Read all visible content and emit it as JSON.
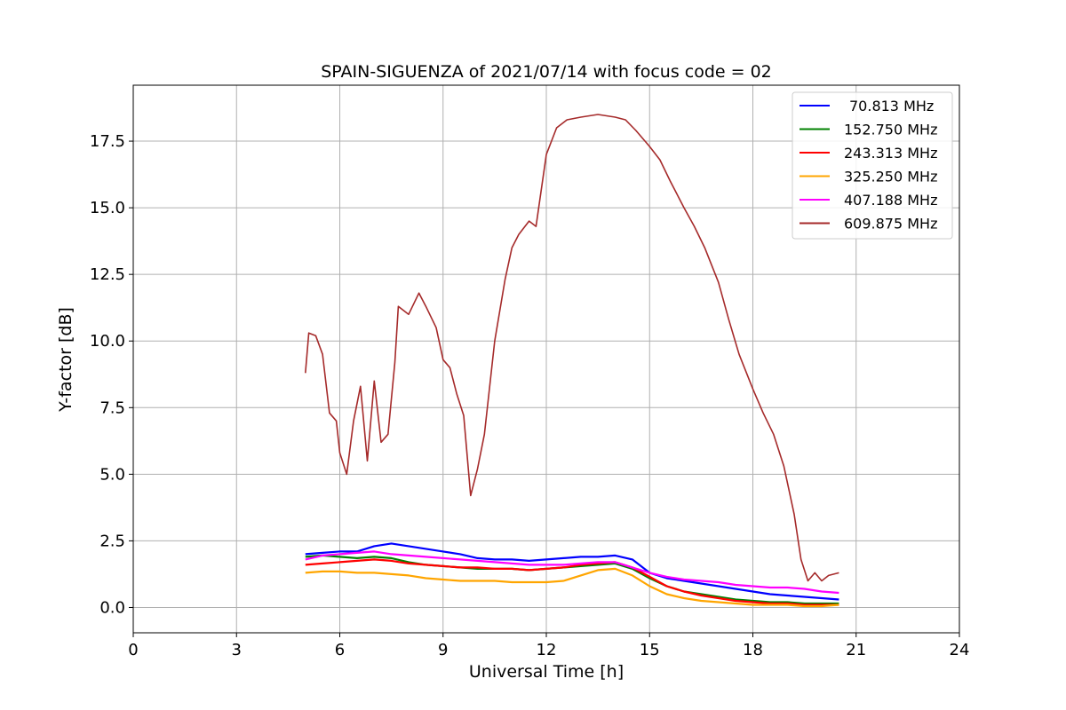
{
  "chart_data": {
    "type": "line",
    "title": "SPAIN-SIGUENZA of 2021/07/14 with focus code = 02",
    "xlabel": "Universal Time [h]",
    "ylabel": "Y-factor [dB]",
    "xlim": [
      0,
      24
    ],
    "ylim": [
      -0.95,
      19.6
    ],
    "xticks": [
      0,
      3,
      6,
      9,
      12,
      15,
      18,
      21,
      24
    ],
    "yticks": [
      0.0,
      2.5,
      5.0,
      7.5,
      10.0,
      12.5,
      15.0,
      17.5
    ],
    "ytick_labels": [
      "0.0",
      "2.5",
      "5.0",
      "7.5",
      "10.0",
      "12.5",
      "15.0",
      "17.5"
    ],
    "grid": true,
    "legend_position": "top-right",
    "series": [
      {
        "name": "70.813 MHz",
        "color": "#0000ff",
        "x": [
          5.0,
          5.5,
          6.0,
          6.5,
          7.0,
          7.5,
          8.0,
          8.5,
          9.0,
          9.5,
          10.0,
          10.5,
          11.0,
          11.5,
          12.0,
          12.5,
          13.0,
          13.5,
          14.0,
          14.5,
          15.0,
          15.5,
          16.0,
          16.5,
          17.0,
          17.5,
          18.0,
          18.5,
          19.0,
          19.5,
          20.0,
          20.5
        ],
        "y": [
          2.0,
          2.05,
          2.1,
          2.1,
          2.3,
          2.4,
          2.3,
          2.2,
          2.1,
          2.0,
          1.85,
          1.8,
          1.8,
          1.75,
          1.8,
          1.85,
          1.9,
          1.9,
          1.95,
          1.8,
          1.3,
          1.1,
          1.0,
          0.9,
          0.8,
          0.7,
          0.6,
          0.5,
          0.45,
          0.4,
          0.35,
          0.3
        ]
      },
      {
        "name": "152.750 MHz",
        "color": "#008000",
        "x": [
          5.0,
          5.5,
          6.0,
          6.5,
          7.0,
          7.5,
          8.0,
          8.5,
          9.0,
          9.5,
          10.0,
          10.5,
          11.0,
          11.5,
          12.0,
          12.5,
          13.0,
          13.5,
          14.0,
          14.5,
          15.0,
          15.5,
          16.0,
          16.5,
          17.0,
          17.5,
          18.0,
          18.5,
          19.0,
          19.5,
          20.0,
          20.5
        ],
        "y": [
          1.9,
          1.95,
          1.9,
          1.85,
          1.9,
          1.85,
          1.7,
          1.6,
          1.55,
          1.5,
          1.45,
          1.45,
          1.45,
          1.4,
          1.45,
          1.5,
          1.55,
          1.6,
          1.65,
          1.45,
          1.1,
          0.8,
          0.6,
          0.5,
          0.4,
          0.3,
          0.25,
          0.2,
          0.2,
          0.15,
          0.15,
          0.15
        ]
      },
      {
        "name": "243.313 MHz",
        "color": "#ff0000",
        "x": [
          5.0,
          5.5,
          6.0,
          6.5,
          7.0,
          7.5,
          8.0,
          8.5,
          9.0,
          9.5,
          10.0,
          10.5,
          11.0,
          11.5,
          12.0,
          12.5,
          13.0,
          13.5,
          14.0,
          14.5,
          15.0,
          15.5,
          16.0,
          16.5,
          17.0,
          17.5,
          18.0,
          18.5,
          19.0,
          19.5,
          20.0,
          20.5
        ],
        "y": [
          1.6,
          1.65,
          1.7,
          1.75,
          1.8,
          1.75,
          1.65,
          1.6,
          1.55,
          1.5,
          1.5,
          1.45,
          1.45,
          1.4,
          1.45,
          1.5,
          1.6,
          1.65,
          1.7,
          1.5,
          1.15,
          0.8,
          0.6,
          0.45,
          0.35,
          0.25,
          0.2,
          0.15,
          0.15,
          0.1,
          0.1,
          0.1
        ]
      },
      {
        "name": "325.250 MHz",
        "color": "#ffa500",
        "x": [
          5.0,
          5.5,
          6.0,
          6.5,
          7.0,
          7.5,
          8.0,
          8.5,
          9.0,
          9.5,
          10.0,
          10.5,
          11.0,
          11.5,
          12.0,
          12.5,
          13.0,
          13.5,
          14.0,
          14.5,
          15.0,
          15.5,
          16.0,
          16.5,
          17.0,
          17.5,
          18.0,
          18.5,
          19.0,
          19.5,
          20.0,
          20.5
        ],
        "y": [
          1.3,
          1.35,
          1.35,
          1.3,
          1.3,
          1.25,
          1.2,
          1.1,
          1.05,
          1.0,
          1.0,
          1.0,
          0.95,
          0.95,
          0.95,
          1.0,
          1.2,
          1.4,
          1.45,
          1.2,
          0.8,
          0.5,
          0.35,
          0.25,
          0.2,
          0.15,
          0.1,
          0.1,
          0.1,
          0.05,
          0.05,
          0.1
        ]
      },
      {
        "name": "407.188 MHz",
        "color": "#ff00ff",
        "x": [
          5.0,
          5.5,
          6.0,
          6.5,
          7.0,
          7.5,
          8.0,
          8.5,
          9.0,
          9.5,
          10.0,
          10.5,
          11.0,
          11.5,
          12.0,
          12.5,
          13.0,
          13.5,
          14.0,
          14.5,
          15.0,
          15.5,
          16.0,
          16.5,
          17.0,
          17.5,
          18.0,
          18.5,
          19.0,
          19.5,
          20.0,
          20.5
        ],
        "y": [
          1.8,
          1.95,
          2.0,
          2.05,
          2.1,
          2.0,
          1.95,
          1.9,
          1.85,
          1.8,
          1.75,
          1.7,
          1.65,
          1.6,
          1.6,
          1.6,
          1.65,
          1.7,
          1.7,
          1.5,
          1.3,
          1.15,
          1.05,
          1.0,
          0.95,
          0.85,
          0.8,
          0.75,
          0.75,
          0.7,
          0.6,
          0.55
        ]
      },
      {
        "name": "609.875 MHz",
        "color": "#a52a2a",
        "x": [
          5.0,
          5.1,
          5.3,
          5.5,
          5.7,
          5.9,
          6.0,
          6.2,
          6.4,
          6.6,
          6.8,
          7.0,
          7.2,
          7.4,
          7.6,
          7.7,
          8.0,
          8.3,
          8.5,
          8.8,
          9.0,
          9.2,
          9.4,
          9.6,
          9.8,
          10.0,
          10.2,
          10.5,
          10.8,
          11.0,
          11.2,
          11.5,
          11.7,
          12.0,
          12.3,
          12.6,
          13.0,
          13.5,
          14.0,
          14.3,
          14.6,
          15.0,
          15.3,
          15.6,
          16.0,
          16.3,
          16.6,
          17.0,
          17.3,
          17.6,
          18.0,
          18.3,
          18.6,
          18.9,
          19.2,
          19.4,
          19.6,
          19.8,
          20.0,
          20.2,
          20.5
        ],
        "y": [
          8.8,
          10.3,
          10.2,
          9.5,
          7.3,
          7.0,
          5.8,
          5.0,
          7.0,
          8.3,
          5.5,
          8.5,
          6.2,
          6.5,
          9.2,
          11.3,
          11.0,
          11.8,
          11.3,
          10.5,
          9.3,
          9.0,
          8.0,
          7.2,
          4.2,
          5.2,
          6.5,
          10.0,
          12.3,
          13.5,
          14.0,
          14.5,
          14.3,
          17.0,
          18.0,
          18.3,
          18.4,
          18.5,
          18.4,
          18.3,
          17.9,
          17.3,
          16.8,
          16.0,
          15.0,
          14.3,
          13.5,
          12.2,
          10.8,
          9.5,
          8.2,
          7.3,
          6.5,
          5.3,
          3.5,
          1.8,
          1.0,
          1.3,
          1.0,
          1.2,
          1.3
        ]
      }
    ]
  }
}
